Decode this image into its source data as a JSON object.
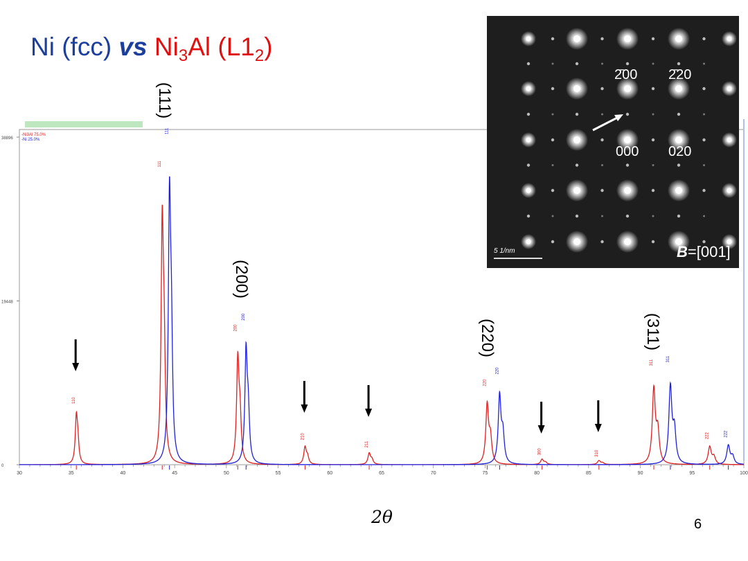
{
  "title": {
    "part1": "Ni (fcc)",
    "vs": "vs",
    "part2_main": "Ni",
    "part2_sub": "3",
    "part2_mid": "Al (L1",
    "part2_sub2": "2",
    "part2_end": ")"
  },
  "x_axis_label": "2θ",
  "page_number": "6",
  "peak_labels": [
    "(111)",
    "(200)",
    "(220)",
    "(311)"
  ],
  "inset": {
    "spot_labels": [
      "2̄00",
      "2̄20",
      "000",
      "020"
    ],
    "scale_bar": "5 1/nm",
    "zone_axis_b": "B",
    "zone_axis_value": "=[001]"
  },
  "chart_data": {
    "type": "line",
    "xlim": [
      30,
      100
    ],
    "ylim": [
      0,
      38896
    ],
    "y_ticks": [
      0,
      19448,
      38896
    ],
    "x_ticks": [
      30,
      35,
      40,
      45,
      50,
      55,
      60,
      65,
      70,
      75,
      80,
      85,
      90,
      95,
      100
    ],
    "legend": [
      "-Ni3Al 75.0%",
      "-Ni 25.0%"
    ],
    "colors": {
      "ni3al": "#e02020",
      "ni": "#2020e0"
    },
    "series": [
      {
        "name": "-Ni3Al 75.0%",
        "peaks": [
          {
            "x": 35.5,
            "y": 6900,
            "label": "110"
          },
          {
            "x": 43.8,
            "y": 35000,
            "label": "111"
          },
          {
            "x": 51.1,
            "y": 15500,
            "label": "200"
          },
          {
            "x": 57.6,
            "y": 2600,
            "label": "210"
          },
          {
            "x": 63.8,
            "y": 1700,
            "label": "211"
          },
          {
            "x": 75.2,
            "y": 9000,
            "label": "220"
          },
          {
            "x": 80.5,
            "y": 800,
            "label": "300"
          },
          {
            "x": 86.0,
            "y": 600,
            "label": "310"
          },
          {
            "x": 91.3,
            "y": 11400,
            "label": "311"
          },
          {
            "x": 96.7,
            "y": 2700,
            "label": "222"
          }
        ]
      },
      {
        "name": "-Ni 25.0%",
        "peaks": [
          {
            "x": 44.5,
            "y": 38900,
            "label": "111"
          },
          {
            "x": 51.9,
            "y": 16800,
            "label": "200"
          },
          {
            "x": 76.4,
            "y": 10400,
            "label": "220"
          },
          {
            "x": 92.9,
            "y": 11800,
            "label": "311"
          },
          {
            "x": 98.5,
            "y": 2900,
            "label": "222"
          }
        ]
      }
    ],
    "arrows_at": [
      35.5,
      57.6,
      63.8,
      80.5,
      86.0
    ]
  }
}
